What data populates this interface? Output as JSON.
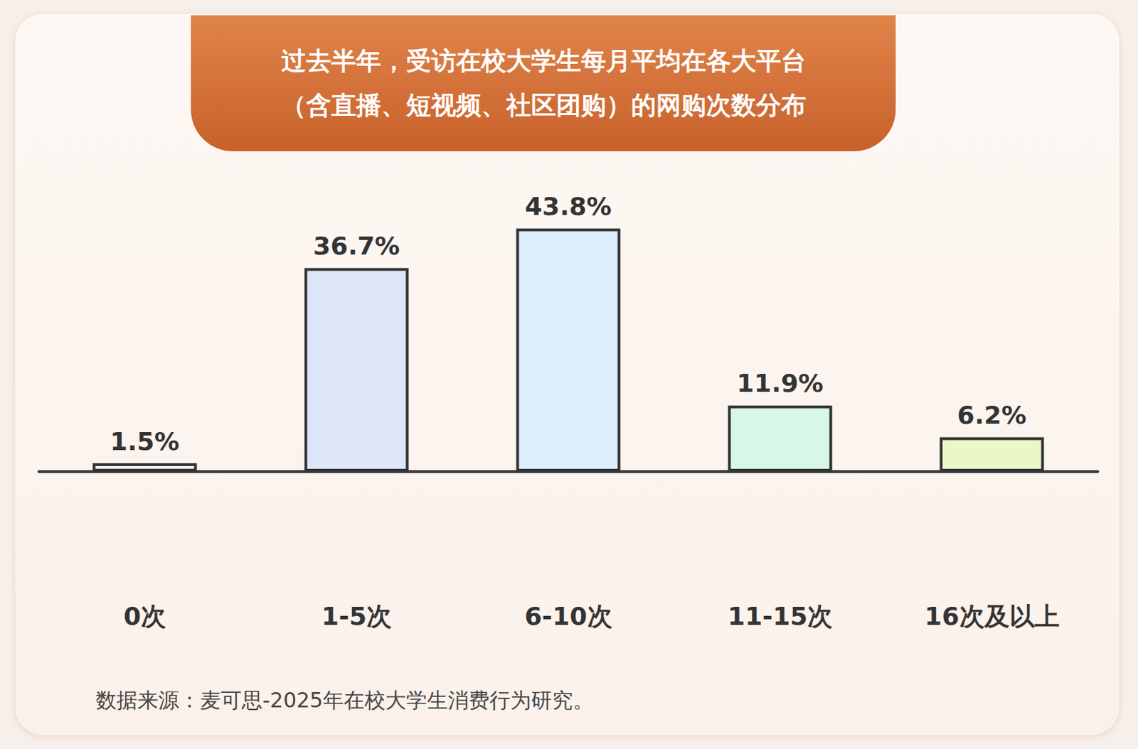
{
  "chart_data": {
    "type": "bar",
    "title": "过去半年，受访在校大学生每月平均在各大平台\n（含直播、短视频、社区团购）的网购次数分布",
    "source": "数据来源：麦可思-2025年在校大学生消费行为研究。",
    "categories": [
      "0次",
      "1-5次",
      "6-10次",
      "11-15次",
      "16次及以上"
    ],
    "values": [
      1.5,
      36.7,
      43.8,
      11.9,
      6.2
    ],
    "value_labels": [
      "1.5%",
      "36.7%",
      "43.8%",
      "11.9%",
      "6.2%"
    ],
    "colors": [
      "#f0f0f0",
      "#dde6f8",
      "#dcefff",
      "#d9f7e6",
      "#eaf8c6"
    ],
    "ylim": [
      0,
      50
    ],
    "grid": false,
    "data_labels": true,
    "tick_labels": "x"
  }
}
